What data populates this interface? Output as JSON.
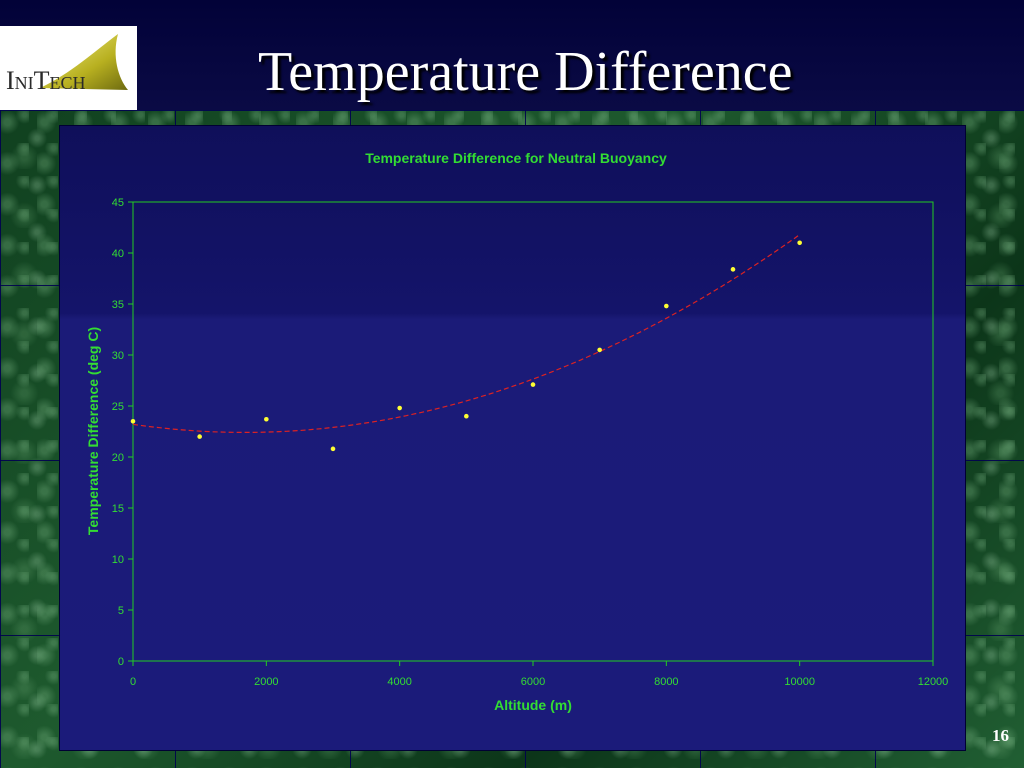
{
  "slide": {
    "title": "Temperature Difference",
    "page_number": "16",
    "logo_text": "IniTech"
  },
  "colors": {
    "axis": "#22cc22",
    "text": "#33dd33",
    "points": "#ffff33",
    "trendline": "#dd2222"
  },
  "chart_data": {
    "type": "scatter",
    "title": "Temperature Difference for Neutral Buoyancy",
    "xlabel": "Altitude (m)",
    "ylabel": "Temperature Difference (deg C)",
    "xlim": [
      0,
      12000
    ],
    "ylim": [
      0,
      45
    ],
    "xticks": [
      0,
      2000,
      4000,
      6000,
      8000,
      10000,
      12000
    ],
    "yticks": [
      0,
      5,
      10,
      15,
      20,
      25,
      30,
      35,
      40,
      45
    ],
    "grid": false,
    "legend": "none",
    "series": [
      {
        "x": [
          0,
          1000,
          2000,
          3000,
          4000,
          5000,
          6000,
          7000,
          8000,
          9000,
          10000
        ],
        "y": [
          23.5,
          22.0,
          23.7,
          20.8,
          24.8,
          24.0,
          27.1,
          30.5,
          34.8,
          38.4,
          41.0
        ]
      }
    ],
    "trendline": {
      "type": "polynomial",
      "order": 2,
      "coefficients": [
        23.2,
        -0.00094,
        2.8e-07
      ],
      "x_range": [
        0,
        10000
      ]
    }
  }
}
